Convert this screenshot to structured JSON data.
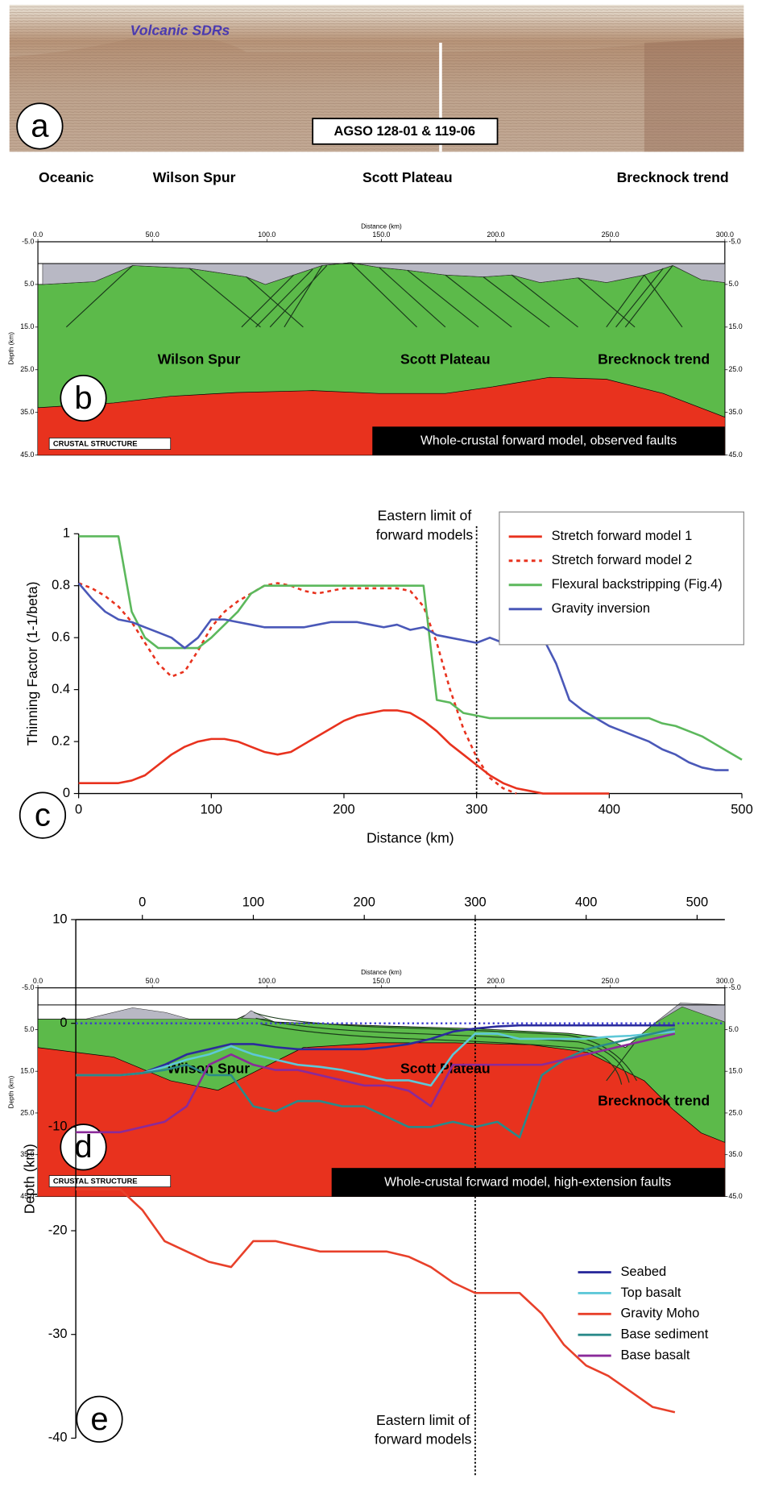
{
  "panels": {
    "a": {
      "letter": "a",
      "annotation": "Volcanic SDRs",
      "line_label": "AGSO 128-01 & 119-06",
      "locations": [
        "Oceanic",
        "Wilson Spur",
        "Scott Plateau",
        "Brecknock trend"
      ]
    },
    "b": {
      "letter": "b",
      "x_label": "Distance (km)",
      "y_label": "Depth (km)",
      "xlim": [
        0,
        300
      ],
      "xticks": [
        {
          "value": 0,
          "label": "0.0"
        },
        {
          "value": 50,
          "label": "50.0"
        },
        {
          "value": 100,
          "label": "100.0"
        },
        {
          "value": 150,
          "label": "150.0"
        },
        {
          "value": 200,
          "label": "200.0"
        },
        {
          "value": 250,
          "label": "250.0"
        },
        {
          "value": 300,
          "label": "300.0"
        }
      ],
      "ylim": [
        -5,
        45
      ],
      "yticks": [
        {
          "value": -5,
          "label": "-5.0"
        },
        {
          "value": 5,
          "label": "5.0"
        },
        {
          "value": 15,
          "label": "15.0"
        },
        {
          "value": 25,
          "label": "25.0"
        },
        {
          "value": 35,
          "label": "35.0"
        },
        {
          "value": 45,
          "label": "45.0"
        }
      ],
      "labels": [
        "Wilson Spur",
        "Scott Plateau",
        "Brecknock trend"
      ],
      "tag": "CRUSTAL STRUCTURE",
      "caption": "Whole-crustal forward model, observed faults"
    },
    "d": {
      "letter": "d",
      "x_label": "Distance (km)",
      "y_label": "Depth (km)",
      "xlim": [
        0,
        300
      ],
      "xticks": [
        {
          "value": 0,
          "label": "0.0"
        },
        {
          "value": 50,
          "label": "50.0"
        },
        {
          "value": 100,
          "label": "100.0"
        },
        {
          "value": 150,
          "label": "150.0"
        },
        {
          "value": 200,
          "label": "200.0"
        },
        {
          "value": 250,
          "label": "250.0"
        },
        {
          "value": 300,
          "label": "300.0"
        }
      ],
      "ylim": [
        -5,
        45
      ],
      "yticks": [
        {
          "value": -5,
          "label": "-5.0"
        },
        {
          "value": 5,
          "label": "5.0"
        },
        {
          "value": 15,
          "label": "15.0"
        },
        {
          "value": 25,
          "label": "25.0"
        },
        {
          "value": 35,
          "label": "35.0"
        },
        {
          "value": 45,
          "label": "45.0"
        }
      ],
      "labels": [
        "Wilson Spur",
        "Scott Plateau",
        "Brecknock trend"
      ],
      "tag": "CRUSTAL STRUCTURE",
      "caption": "Whole-crustal forward model, high-extension faults"
    }
  },
  "chart_data": [
    {
      "type": "line",
      "panel_label": "c",
      "x_label": "Distance (km)",
      "y_label": "Thinning Factor (1-1/beta)",
      "annotation_lines": [
        "Eastern limit of",
        "forward models"
      ],
      "vline": 300,
      "legend": "upper right",
      "xlim": [
        0,
        500
      ],
      "xticks": [
        0,
        100,
        200,
        300,
        400,
        500
      ],
      "ylim": [
        0,
        1
      ],
      "yticks": [
        0,
        0.2,
        0.4,
        0.6,
        0.8,
        1
      ],
      "x": [
        0,
        10,
        20,
        30,
        40,
        50,
        60,
        70,
        80,
        90,
        100,
        110,
        120,
        130,
        140,
        150,
        160,
        170,
        180,
        190,
        200,
        210,
        220,
        230,
        240,
        250,
        260,
        270,
        280,
        290,
        300,
        310,
        320,
        330,
        340,
        350,
        360,
        370,
        380,
        390,
        400,
        410,
        420,
        430,
        440,
        450,
        460,
        470,
        480,
        490,
        500
      ],
      "series": [
        {
          "name": "Stretch forward model 1",
          "color": "#e8321e",
          "dashed": false,
          "values": [
            0.04,
            0.04,
            0.04,
            0.04,
            0.05,
            0.07,
            0.11,
            0.15,
            0.18,
            0.2,
            0.21,
            0.21,
            0.2,
            0.18,
            0.16,
            0.15,
            0.16,
            0.19,
            0.22,
            0.25,
            0.28,
            0.3,
            0.31,
            0.32,
            0.32,
            0.31,
            0.28,
            0.24,
            0.19,
            0.15,
            0.11,
            0.07,
            0.04,
            0.02,
            0.01,
            0,
            0,
            0,
            0,
            0,
            0,
            null,
            null,
            null,
            null,
            null,
            null,
            null,
            null,
            null,
            null
          ]
        },
        {
          "name": "Stretch forward model 2",
          "color": "#e8321e",
          "dashed": true,
          "values": [
            0.81,
            0.79,
            0.76,
            0.72,
            0.66,
            0.58,
            0.5,
            0.45,
            0.47,
            0.55,
            0.64,
            0.7,
            0.74,
            0.77,
            0.8,
            0.81,
            0.8,
            0.78,
            0.77,
            0.78,
            0.79,
            0.79,
            0.79,
            0.79,
            0.79,
            0.78,
            0.72,
            0.58,
            0.4,
            0.25,
            0.14,
            0.06,
            0.02,
            0,
            null,
            null,
            null,
            null,
            null,
            null,
            null,
            null,
            null,
            null,
            null,
            null,
            null,
            null,
            null,
            null,
            null
          ]
        },
        {
          "name": "Flexural backstripping (Fig.4)",
          "color": "#5cb85c",
          "dashed": false,
          "values": [
            0.99,
            0.99,
            0.99,
            0.99,
            0.7,
            0.6,
            0.56,
            0.56,
            0.56,
            0.56,
            0.6,
            0.65,
            0.7,
            0.77,
            0.8,
            0.8,
            0.8,
            0.8,
            0.8,
            0.8,
            0.8,
            0.8,
            0.8,
            0.8,
            0.8,
            0.8,
            0.8,
            0.36,
            0.35,
            0.31,
            0.3,
            0.29,
            0.29,
            0.29,
            0.29,
            0.29,
            0.29,
            0.29,
            0.29,
            0.29,
            0.29,
            0.29,
            0.29,
            0.29,
            0.27,
            0.26,
            0.24,
            0.22,
            0.19,
            0.16,
            0.13
          ]
        },
        {
          "name": "Gravity inversion",
          "color": "#4a58b8",
          "dashed": false,
          "values": [
            0.81,
            0.75,
            0.7,
            0.67,
            0.66,
            0.64,
            0.62,
            0.6,
            0.56,
            0.6,
            0.67,
            0.67,
            0.66,
            0.65,
            0.64,
            0.64,
            0.64,
            0.64,
            0.65,
            0.66,
            0.66,
            0.66,
            0.65,
            0.64,
            0.65,
            0.63,
            0.64,
            0.61,
            0.6,
            0.59,
            0.58,
            0.6,
            0.58,
            0.6,
            0.61,
            0.6,
            0.5,
            0.36,
            0.32,
            0.29,
            0.26,
            0.24,
            0.22,
            0.2,
            0.17,
            0.15,
            0.12,
            0.1,
            0.09,
            0.09,
            null
          ]
        }
      ]
    },
    {
      "type": "line",
      "panel_label": "e",
      "y_label": "Depth (km)",
      "annotation_lines": [
        "Eastern limit of",
        "forward models"
      ],
      "vline": 300,
      "hline": 0,
      "legend": "lower right",
      "xlim": [
        -60,
        525
      ],
      "xticks": [
        0,
        100,
        200,
        300,
        400,
        500
      ],
      "ylim": [
        -40,
        10
      ],
      "yticks": [
        -40,
        -30,
        -20,
        -10,
        0,
        10
      ],
      "x": [
        -60,
        -40,
        -20,
        0,
        20,
        40,
        60,
        80,
        100,
        120,
        140,
        160,
        180,
        200,
        220,
        240,
        260,
        280,
        300,
        320,
        340,
        360,
        380,
        400,
        420,
        440,
        460,
        480
      ],
      "series": [
        {
          "name": "Seabed",
          "color": "#2b2b9c",
          "dashed": false,
          "values": [
            -5,
            -5,
            -5,
            -4.8,
            -4,
            -3,
            -2.5,
            -2,
            -2,
            -2.3,
            -2.5,
            -2.5,
            -2.5,
            -2.5,
            -2.3,
            -2,
            -1.5,
            -0.8,
            -0.5,
            -0.3,
            -0.2,
            -0.2,
            -0.2,
            -0.2,
            -0.2,
            -0.2,
            -0.2,
            -0.2
          ]
        },
        {
          "name": "Top basalt",
          "color": "#5ec8d8",
          "dashed": false,
          "values": [
            -5,
            -5,
            -5,
            -4.8,
            -4.2,
            -3.5,
            -3,
            -2.2,
            -3,
            -3.5,
            -4,
            -4.2,
            -4.5,
            -5,
            -5.5,
            -5.5,
            -6,
            -3,
            -1,
            -1,
            -1.5,
            -1.5,
            -1.5,
            -1.5,
            -1.3,
            -1.2,
            -1,
            -0.8
          ]
        },
        {
          "name": "Gravity Moho",
          "color": "#e8402a",
          "dashed": false,
          "values": [
            -16,
            -16,
            -16,
            -18,
            -21,
            -22,
            -23,
            -23.5,
            -21,
            -21,
            -21.5,
            -22,
            -22,
            -22,
            -22,
            -22.5,
            -23.5,
            -25,
            -26,
            -26,
            -26,
            -28,
            -31,
            -33,
            -34,
            -35.5,
            -37,
            -37.5
          ]
        },
        {
          "name": "Base sediment",
          "color": "#2a8a8a",
          "dashed": false,
          "values": [
            -5,
            -5,
            -5,
            -4.8,
            -4.5,
            -4,
            -5,
            -5,
            -8,
            -8.5,
            -7.5,
            -7.5,
            -8,
            -8,
            -9,
            -10,
            -10,
            -9.5,
            -10,
            -9.5,
            -11,
            -5,
            -3.5,
            -2.5,
            -2,
            -1.5,
            -1,
            -0.5
          ]
        },
        {
          "name": "Base basalt",
          "color": "#8a2a9a",
          "dashed": false,
          "values": [
            -10.5,
            -10.5,
            -10.5,
            -10,
            -9.5,
            -8,
            -4,
            -3,
            -4,
            -4.5,
            -4.5,
            -5,
            -5.5,
            -6,
            -6,
            -6.5,
            -8,
            -4,
            -4,
            -4,
            -4,
            -4,
            -3.5,
            -3,
            -2.5,
            -2,
            -1.5,
            -1
          ]
        }
      ]
    }
  ]
}
